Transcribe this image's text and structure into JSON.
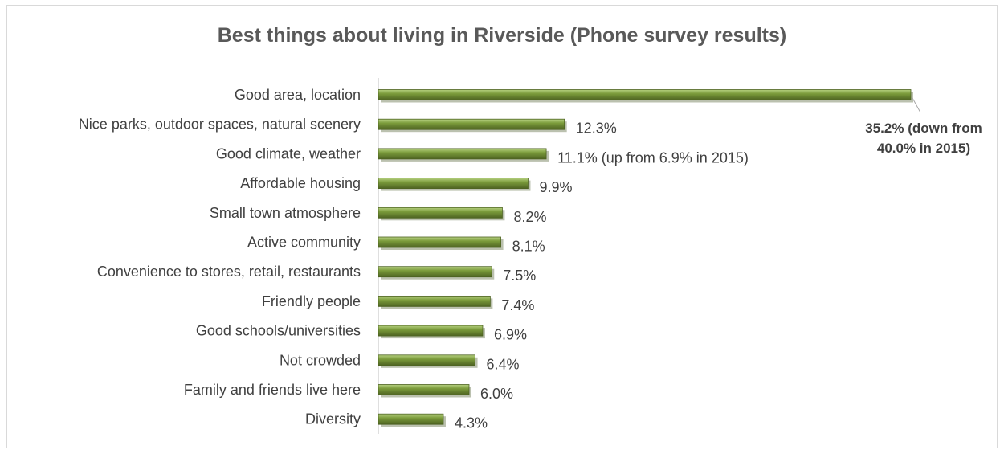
{
  "chart_data": {
    "type": "bar",
    "orientation": "horizontal",
    "title": "Best things about living in Riverside (Phone survey results)",
    "categories": [
      "Good area, location",
      "Nice parks, outdoor spaces, natural scenery",
      "Good climate, weather",
      "Affordable housing",
      "Small town atmosphere",
      "Active community",
      "Convenience to stores, retail, restaurants",
      "Friendly people",
      "Good schools/universities",
      "Not crowded",
      "Family and friends live here",
      "Diversity"
    ],
    "values": [
      35.2,
      12.3,
      11.1,
      9.9,
      8.2,
      8.1,
      7.5,
      7.4,
      6.9,
      6.4,
      6.0,
      4.3
    ],
    "data_labels": [
      "",
      "12.3%",
      "11.1% (up from 6.9% in 2015)",
      "9.9%",
      "8.2%",
      "8.1%",
      "7.5%",
      "7.4%",
      "6.9%",
      "6.4%",
      "6.0%",
      "4.3%"
    ],
    "callout": {
      "category": "Good area, location",
      "lines": [
        "35.2% (down from",
        "40.0% in 2015)"
      ]
    },
    "xlim": [
      0,
      35.2
    ],
    "xlabel": "",
    "ylabel": "",
    "grid": false,
    "legend": "none",
    "bar_color": "#7a9a3a",
    "bar_highlight": "#b5d080",
    "bar_shadow": "#4e6322"
  }
}
